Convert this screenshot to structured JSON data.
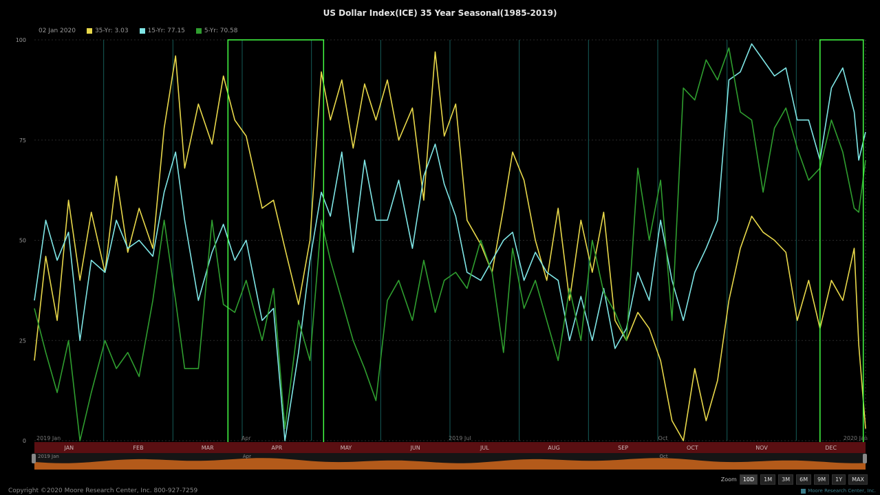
{
  "chart_data": {
    "type": "line",
    "title": "US Dollar Index(ICE) 35 Year Seasonal(1985-2019)",
    "legend": {
      "date": "02 Jan 2020",
      "entries": [
        {
          "label": "35-Yr: 3.03",
          "color": "#e8d84a"
        },
        {
          "label": "15-Yr: 77.15",
          "color": "#7fe6e6"
        },
        {
          "label": "5-Yr: 70.58",
          "color": "#2f9e2f"
        }
      ]
    },
    "ylim": [
      0,
      100
    ],
    "yticks": [
      "0",
      "25",
      "50",
      "75",
      "100"
    ],
    "months": [
      "JAN",
      "FEB",
      "MAR",
      "APR",
      "MAY",
      "JUN",
      "JUL",
      "AUG",
      "SEP",
      "OCT",
      "NOV",
      "DEC"
    ],
    "axis_markers": [
      "2019 Jan",
      "Apr",
      "2019 Jul",
      "Oct",
      "2020 Jan"
    ],
    "navigator_markers": [
      "2019 Jan",
      "Apr",
      "Oct"
    ],
    "x_domain": [
      0,
      365
    ],
    "highlights": [
      [
        85,
        127
      ],
      [
        345,
        364
      ]
    ],
    "series": [
      {
        "name": "35-Yr",
        "color": "#e8d84a",
        "x": [
          0,
          5,
          10,
          15,
          20,
          25,
          31,
          36,
          41,
          46,
          52,
          57,
          62,
          66,
          72,
          78,
          83,
          88,
          93,
          100,
          105,
          110,
          116,
          121,
          126,
          130,
          135,
          140,
          145,
          150,
          155,
          160,
          166,
          171,
          176,
          180,
          185,
          190,
          196,
          201,
          206,
          210,
          215,
          220,
          225,
          230,
          235,
          240,
          245,
          250,
          255,
          260,
          265,
          270,
          275,
          280,
          285,
          290,
          295,
          300,
          305,
          310,
          315,
          320,
          325,
          330,
          335,
          340,
          345,
          350,
          355,
          360,
          362,
          365
        ],
        "values": [
          20,
          46,
          30,
          60,
          40,
          57,
          42,
          66,
          47,
          58,
          48,
          78,
          96,
          68,
          84,
          74,
          91,
          80,
          76,
          58,
          60,
          48,
          34,
          50,
          92,
          80,
          90,
          73,
          89,
          80,
          90,
          75,
          83,
          60,
          97,
          76,
          84,
          55,
          49,
          42,
          58,
          72,
          65,
          50,
          40,
          58,
          35,
          55,
          42,
          57,
          30,
          25,
          32,
          28,
          20,
          5,
          0,
          18,
          5,
          15,
          35,
          48,
          56,
          52,
          50,
          47,
          30,
          40,
          28,
          40,
          35,
          48,
          24,
          3
        ]
      },
      {
        "name": "15-Yr",
        "color": "#7fe6e6",
        "x": [
          0,
          5,
          10,
          15,
          20,
          25,
          31,
          36,
          41,
          46,
          52,
          57,
          62,
          66,
          72,
          78,
          83,
          88,
          93,
          100,
          105,
          110,
          116,
          121,
          126,
          130,
          135,
          140,
          145,
          150,
          155,
          160,
          166,
          171,
          176,
          180,
          185,
          190,
          196,
          201,
          206,
          210,
          215,
          220,
          225,
          230,
          235,
          240,
          245,
          250,
          255,
          260,
          265,
          270,
          275,
          280,
          285,
          290,
          295,
          300,
          305,
          310,
          315,
          320,
          325,
          330,
          335,
          340,
          345,
          350,
          355,
          360,
          362,
          365
        ],
        "values": [
          35,
          55,
          45,
          52,
          25,
          45,
          42,
          55,
          48,
          50,
          46,
          62,
          72,
          55,
          35,
          47,
          54,
          45,
          50,
          30,
          33,
          0,
          22,
          45,
          62,
          56,
          72,
          47,
          70,
          55,
          55,
          65,
          48,
          66,
          74,
          64,
          56,
          42,
          40,
          45,
          50,
          52,
          40,
          47,
          42,
          40,
          25,
          36,
          25,
          38,
          23,
          28,
          42,
          35,
          55,
          40,
          30,
          42,
          48,
          55,
          90,
          92,
          99,
          95,
          91,
          93,
          80,
          80,
          70,
          88,
          93,
          82,
          70,
          77
        ]
      },
      {
        "name": "5-Yr",
        "color": "#2f9e2f",
        "x": [
          0,
          5,
          10,
          15,
          20,
          25,
          31,
          36,
          41,
          46,
          52,
          57,
          62,
          66,
          72,
          78,
          83,
          88,
          93,
          100,
          105,
          110,
          116,
          121,
          126,
          130,
          135,
          140,
          145,
          150,
          155,
          160,
          166,
          171,
          176,
          180,
          185,
          190,
          196,
          201,
          206,
          210,
          215,
          220,
          225,
          230,
          235,
          240,
          245,
          250,
          255,
          260,
          265,
          270,
          275,
          280,
          285,
          290,
          295,
          300,
          305,
          310,
          315,
          320,
          325,
          330,
          335,
          340,
          345,
          350,
          355,
          360,
          362,
          365
        ],
        "values": [
          33,
          22,
          12,
          25,
          0,
          12,
          25,
          18,
          22,
          16,
          35,
          55,
          35,
          18,
          18,
          55,
          34,
          32,
          40,
          25,
          38,
          3,
          30,
          20,
          55,
          45,
          35,
          25,
          18,
          10,
          35,
          40,
          30,
          45,
          32,
          40,
          42,
          38,
          50,
          42,
          22,
          48,
          33,
          40,
          30,
          20,
          38,
          25,
          50,
          37,
          32,
          25,
          68,
          50,
          65,
          30,
          88,
          85,
          95,
          90,
          98,
          82,
          80,
          62,
          78,
          83,
          73,
          65,
          68,
          80,
          72,
          58,
          57,
          70
        ]
      }
    ]
  },
  "zoom": {
    "label": "Zoom",
    "buttons": [
      "10D",
      "1M",
      "3M",
      "6M",
      "9M",
      "1Y",
      "MAX"
    ],
    "active": "10D"
  },
  "footer": {
    "copyright": "Copyright ©2020 Moore Research Center, Inc. 800-927-7259",
    "credit": "Moore Research Center, Inc."
  },
  "style": {
    "background": "#000000",
    "month_band": "#5a0f12",
    "navigator_fill": "#b35a1a",
    "highlight": "#44ff44",
    "vgrid": "#155d5a"
  }
}
